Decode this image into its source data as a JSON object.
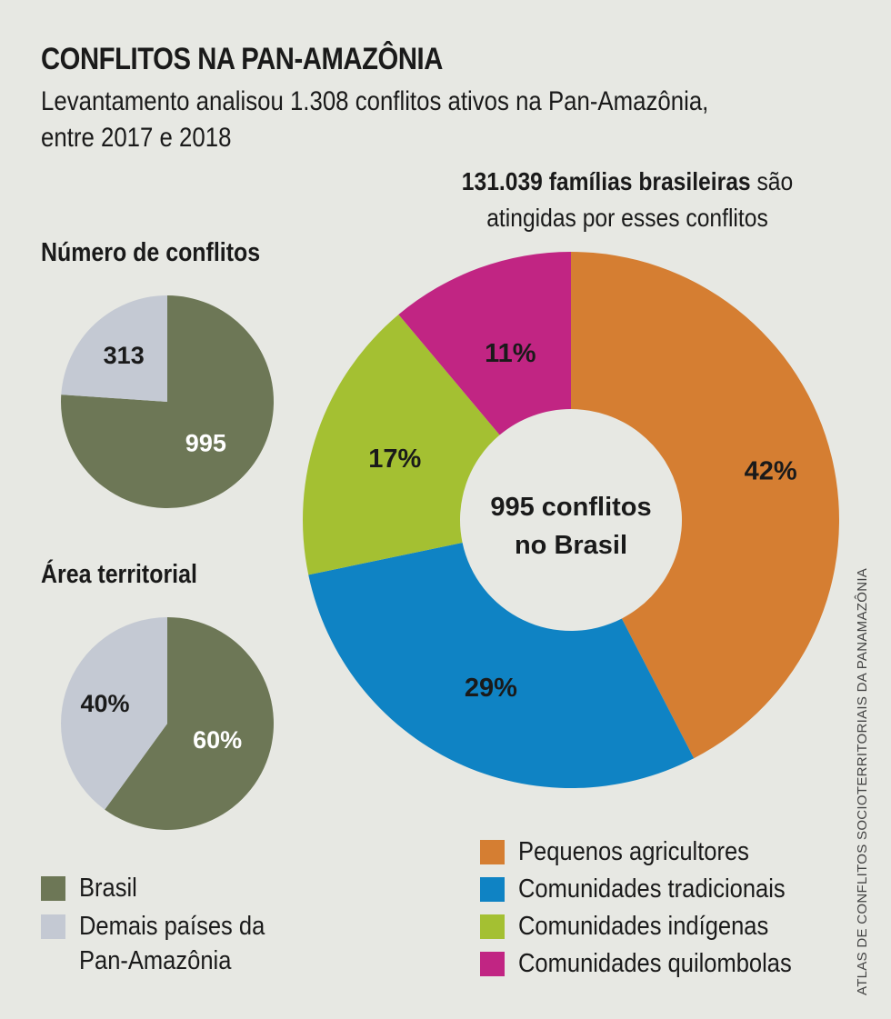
{
  "title": "CONFLITOS NA PAN-AMAZÔNIA",
  "subtitle": "Levantamento analisou 1.308 conflitos ativos na Pan-Amazônia, entre 2017 e 2018",
  "families": {
    "bold": "131.039 famílias brasileiras",
    "rest": " são atingidas por esses conflitos"
  },
  "source": "ATLAS DE CONFLITOS SOCIOTERRITORIAIS DA PANAMAZÔNIA",
  "colors": {
    "brasil": "#6d7756",
    "demais": "#c4c9d3",
    "pequenos": "#d57e32",
    "tradicionais": "#0f83c4",
    "indigenas": "#a4c032",
    "quilombolas": "#c12583"
  },
  "chart_data": [
    {
      "type": "pie",
      "title": "Número de conflitos",
      "categories": [
        "Brasil",
        "Demais países da Pan-Amazônia"
      ],
      "values": [
        995,
        313
      ],
      "labels": [
        "995",
        "313"
      ]
    },
    {
      "type": "pie",
      "title": "Área territorial",
      "categories": [
        "Brasil",
        "Demais países da Pan-Amazônia"
      ],
      "values": [
        60,
        40
      ],
      "labels": [
        "60%",
        "40%"
      ]
    },
    {
      "type": "pie",
      "title": "995 conflitos no Brasil",
      "center_line1": "995 conflitos",
      "center_line2": "no Brasil",
      "categories": [
        "Pequenos agricultores",
        "Comunidades tradicionais",
        "Comunidades indígenas",
        "Comunidades quilombolas"
      ],
      "values": [
        42,
        29,
        17,
        11
      ],
      "labels": [
        "42%",
        "29%",
        "17%",
        "11%"
      ]
    }
  ],
  "legend_left": [
    {
      "label": "Brasil",
      "color_key": "brasil"
    },
    {
      "label": "Demais países da",
      "label2": "Pan-Amazônia",
      "color_key": "demais"
    }
  ],
  "legend_right": [
    {
      "label": "Pequenos agricultores",
      "color_key": "pequenos"
    },
    {
      "label": "Comunidades tradicionais",
      "color_key": "tradicionais"
    },
    {
      "label": "Comunidades indígenas",
      "color_key": "indigenas"
    },
    {
      "label": "Comunidades quilombolas",
      "color_key": "quilombolas"
    }
  ]
}
